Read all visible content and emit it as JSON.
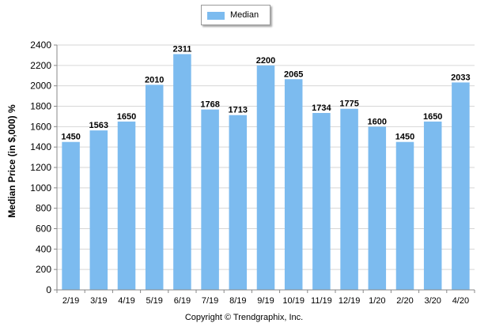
{
  "legend": {
    "label": "Median"
  },
  "footer": {
    "text": "Copyright © Trendgraphix, Inc."
  },
  "colors": {
    "bar": "#7cbbef",
    "grid": "#d6d6d6",
    "axis": "#888888"
  },
  "chart_data": {
    "type": "bar",
    "title": "",
    "xlabel": "",
    "ylabel": "Median Price (in $,000) %",
    "ylim": [
      0,
      2400
    ],
    "yticks": [
      0,
      200,
      400,
      600,
      800,
      1000,
      1200,
      1400,
      1600,
      1800,
      2000,
      2200,
      2400
    ],
    "grid": true,
    "legend_position": "top-center",
    "categories": [
      "2/19",
      "3/19",
      "4/19",
      "5/19",
      "6/19",
      "7/19",
      "8/19",
      "9/19",
      "10/19",
      "11/19",
      "12/19",
      "1/20",
      "2/20",
      "3/20",
      "4/20"
    ],
    "series": [
      {
        "name": "Median",
        "values": [
          1450,
          1563,
          1650,
          2010,
          2311,
          1768,
          1713,
          2200,
          2065,
          1734,
          1775,
          1600,
          1450,
          1650,
          2033
        ]
      }
    ]
  }
}
